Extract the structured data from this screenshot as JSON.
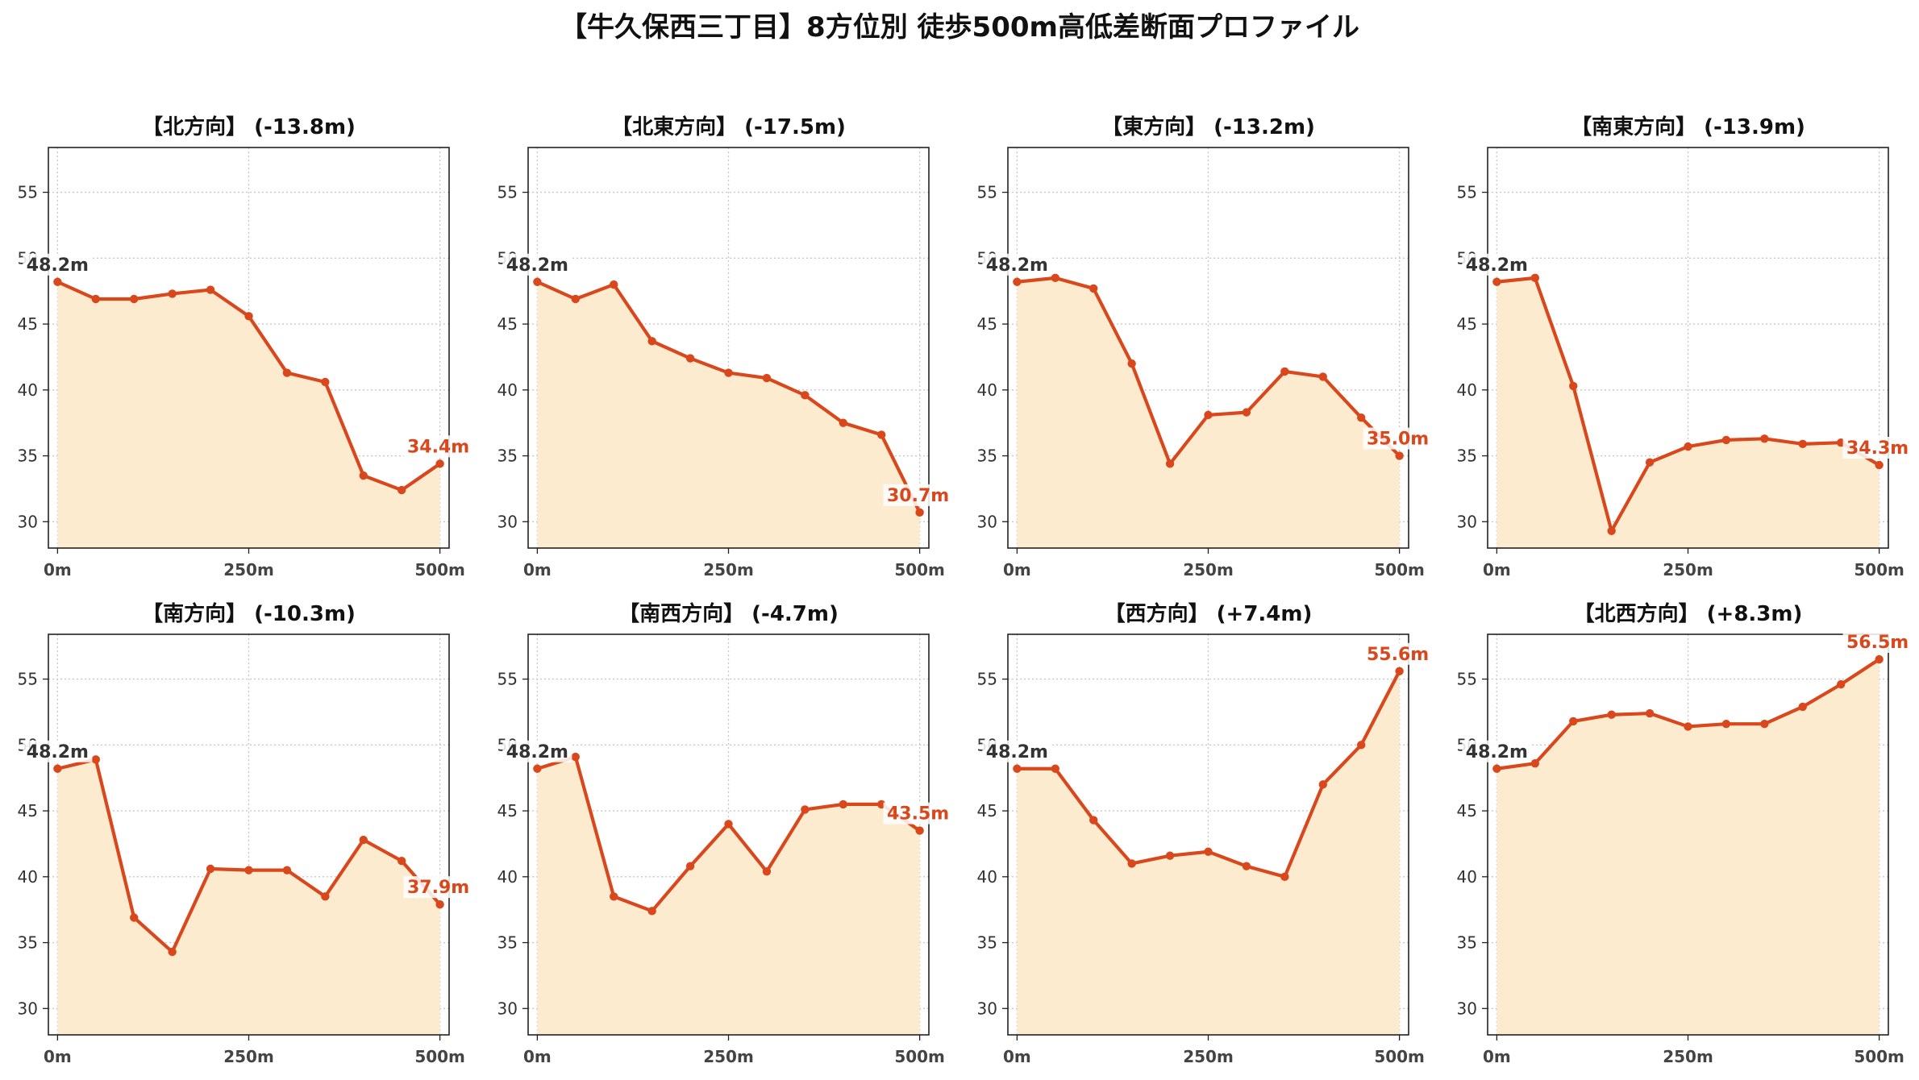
{
  "title": "【牛久保西三丁目】8方位別 徒歩500m高低差断面プロファイル",
  "colors": {
    "line": "#d9481c",
    "marker": "#d9481c",
    "fill": "#fdebd0",
    "start_label": "#333333",
    "end_label": "#d9481c"
  },
  "chart_data": [
    {
      "type": "area",
      "title": "【北方向】 (-13.8m)",
      "x": [
        0,
        50,
        100,
        150,
        200,
        250,
        300,
        350,
        400,
        450,
        500
      ],
      "y": [
        48.2,
        46.9,
        46.9,
        47.3,
        47.6,
        45.6,
        41.3,
        40.6,
        33.5,
        32.4,
        34.4
      ],
      "ylim": [
        28,
        58.4
      ],
      "xlim": [
        -12,
        512
      ],
      "yticks": [
        30,
        35,
        40,
        45,
        50,
        55
      ],
      "xticks": [
        0,
        250,
        500
      ],
      "xtick_labels": [
        "0m",
        "250m",
        "500m"
      ],
      "start_label": "48.2m",
      "end_label": "34.4m",
      "grid": true
    },
    {
      "type": "area",
      "title": "【北東方向】 (-17.5m)",
      "x": [
        0,
        50,
        100,
        150,
        200,
        250,
        300,
        350,
        400,
        450,
        500
      ],
      "y": [
        48.2,
        46.9,
        48.0,
        43.7,
        42.4,
        41.3,
        40.9,
        39.6,
        37.5,
        36.6,
        30.7
      ],
      "ylim": [
        28,
        58.4
      ],
      "xlim": [
        -12,
        512
      ],
      "yticks": [
        30,
        35,
        40,
        45,
        50,
        55
      ],
      "xticks": [
        0,
        250,
        500
      ],
      "xtick_labels": [
        "0m",
        "250m",
        "500m"
      ],
      "start_label": "48.2m",
      "end_label": "30.7m",
      "grid": true
    },
    {
      "type": "area",
      "title": "【東方向】 (-13.2m)",
      "x": [
        0,
        50,
        100,
        150,
        200,
        250,
        300,
        350,
        400,
        450,
        500
      ],
      "y": [
        48.2,
        48.5,
        47.7,
        42.0,
        34.4,
        38.1,
        38.3,
        41.4,
        41.0,
        37.9,
        35.0
      ],
      "ylim": [
        28,
        58.4
      ],
      "xlim": [
        -12,
        512
      ],
      "yticks": [
        30,
        35,
        40,
        45,
        50,
        55
      ],
      "xticks": [
        0,
        250,
        500
      ],
      "xtick_labels": [
        "0m",
        "250m",
        "500m"
      ],
      "start_label": "48.2m",
      "end_label": "35.0m",
      "grid": true
    },
    {
      "type": "area",
      "title": "【南東方向】 (-13.9m)",
      "x": [
        0,
        50,
        100,
        150,
        200,
        250,
        300,
        350,
        400,
        450,
        500
      ],
      "y": [
        48.2,
        48.5,
        40.3,
        29.3,
        34.5,
        35.7,
        36.2,
        36.3,
        35.9,
        36.0,
        34.3
      ],
      "ylim": [
        28,
        58.4
      ],
      "xlim": [
        -12,
        512
      ],
      "yticks": [
        30,
        35,
        40,
        45,
        50,
        55
      ],
      "xticks": [
        0,
        250,
        500
      ],
      "xtick_labels": [
        "0m",
        "250m",
        "500m"
      ],
      "start_label": "48.2m",
      "end_label": "34.3m",
      "grid": true
    },
    {
      "type": "area",
      "title": "【南方向】 (-10.3m)",
      "x": [
        0,
        50,
        100,
        150,
        200,
        250,
        300,
        350,
        400,
        450,
        500
      ],
      "y": [
        48.2,
        48.9,
        36.9,
        34.3,
        40.6,
        40.5,
        40.5,
        38.5,
        42.8,
        41.2,
        37.9
      ],
      "ylim": [
        28,
        58.4
      ],
      "xlim": [
        -12,
        512
      ],
      "yticks": [
        30,
        35,
        40,
        45,
        50,
        55
      ],
      "xticks": [
        0,
        250,
        500
      ],
      "xtick_labels": [
        "0m",
        "250m",
        "500m"
      ],
      "start_label": "48.2m",
      "end_label": "37.9m",
      "grid": true
    },
    {
      "type": "area",
      "title": "【南西方向】 (-4.7m)",
      "x": [
        0,
        50,
        100,
        150,
        200,
        250,
        300,
        350,
        400,
        450,
        500
      ],
      "y": [
        48.2,
        49.1,
        38.5,
        37.4,
        40.8,
        44.0,
        40.4,
        45.1,
        45.5,
        45.5,
        43.5
      ],
      "ylim": [
        28,
        58.4
      ],
      "xlim": [
        -12,
        512
      ],
      "yticks": [
        30,
        35,
        40,
        45,
        50,
        55
      ],
      "xticks": [
        0,
        250,
        500
      ],
      "xtick_labels": [
        "0m",
        "250m",
        "500m"
      ],
      "start_label": "48.2m",
      "end_label": "43.5m",
      "grid": true
    },
    {
      "type": "area",
      "title": "【西方向】 (+7.4m)",
      "x": [
        0,
        50,
        100,
        150,
        200,
        250,
        300,
        350,
        400,
        450,
        500
      ],
      "y": [
        48.2,
        48.2,
        44.3,
        41.0,
        41.6,
        41.9,
        40.8,
        40.0,
        47.0,
        50.0,
        55.6
      ],
      "ylim": [
        28,
        58.4
      ],
      "xlim": [
        -12,
        512
      ],
      "yticks": [
        30,
        35,
        40,
        45,
        50,
        55
      ],
      "xticks": [
        0,
        250,
        500
      ],
      "xtick_labels": [
        "0m",
        "250m",
        "500m"
      ],
      "start_label": "48.2m",
      "end_label": "55.6m",
      "grid": true
    },
    {
      "type": "area",
      "title": "【北西方向】 (+8.3m)",
      "x": [
        0,
        50,
        100,
        150,
        200,
        250,
        300,
        350,
        400,
        450,
        500
      ],
      "y": [
        48.2,
        48.6,
        51.8,
        52.3,
        52.4,
        51.4,
        51.6,
        51.6,
        52.9,
        54.6,
        56.5
      ],
      "ylim": [
        28,
        58.4
      ],
      "xlim": [
        -12,
        512
      ],
      "yticks": [
        30,
        35,
        40,
        45,
        50,
        55
      ],
      "xticks": [
        0,
        250,
        500
      ],
      "xtick_labels": [
        "0m",
        "250m",
        "500m"
      ],
      "start_label": "48.2m",
      "end_label": "56.5m",
      "grid": true
    }
  ]
}
